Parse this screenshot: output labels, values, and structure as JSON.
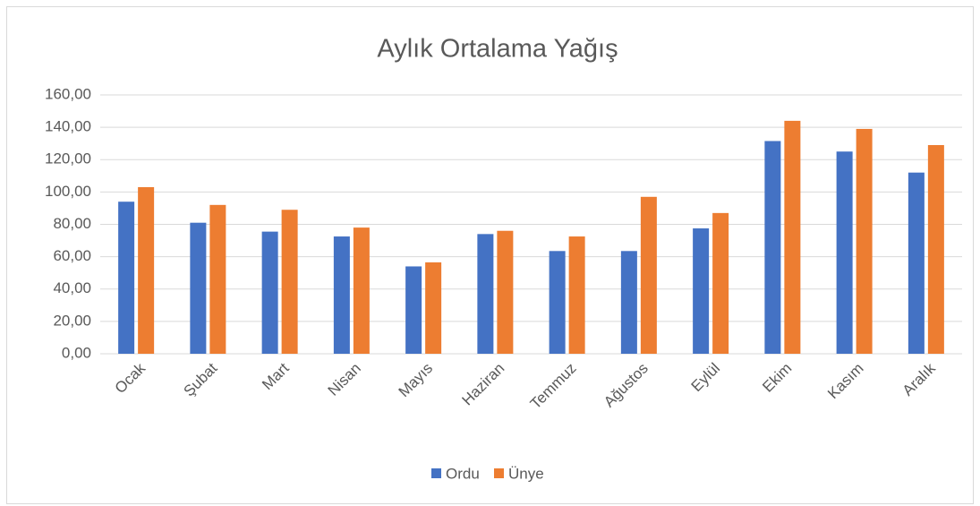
{
  "chart_data": {
    "type": "bar",
    "title": "Aylık Ortalama Yağış",
    "categories": [
      "Ocak",
      "Şubat",
      "Mart",
      "Nisan",
      "Mayıs",
      "Haziran",
      "Temmuz",
      "Ağustos",
      "Eylül",
      "Ekim",
      "Kasım",
      "Aralık"
    ],
    "series": [
      {
        "name": "Ordu",
        "color": "#4472c4",
        "values": [
          94,
          81,
          75.5,
          72.5,
          54,
          74,
          63.5,
          63.5,
          77.5,
          131.5,
          125,
          112
        ]
      },
      {
        "name": "Ünye",
        "color": "#ed7d31",
        "values": [
          103,
          92,
          89,
          78,
          56.5,
          76,
          72.5,
          97,
          87,
          144,
          139,
          129
        ]
      }
    ],
    "ylim": [
      0,
      160
    ],
    "yticks": [
      {
        "value": 0,
        "label": "0,00"
      },
      {
        "value": 20,
        "label": "20,00"
      },
      {
        "value": 40,
        "label": "40,00"
      },
      {
        "value": 60,
        "label": "60,00"
      },
      {
        "value": 80,
        "label": "80,00"
      },
      {
        "value": 100,
        "label": "100,00"
      },
      {
        "value": 120,
        "label": "120,00"
      },
      {
        "value": 140,
        "label": "140,00"
      },
      {
        "value": 160,
        "label": "160,00"
      }
    ],
    "grid": true,
    "legend": "bottom"
  }
}
